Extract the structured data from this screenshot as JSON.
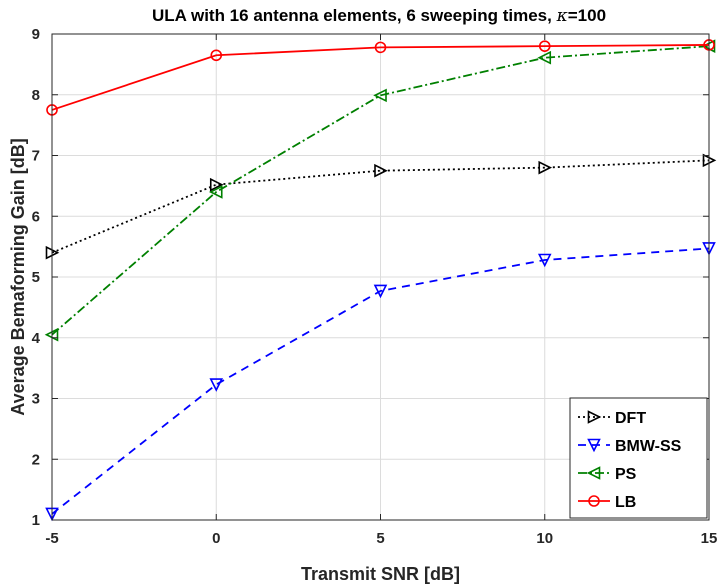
{
  "chart_data": {
    "type": "line",
    "title_text": "ULA with 16 antenna elements, 6 sweeping times, ",
    "title_symbol": "κ",
    "title_suffix": "=100",
    "xlabel": "Transmit SNR [dB]",
    "ylabel": "Average Bemaforming Gain [dB]",
    "xlim": [
      -5,
      15
    ],
    "ylim": [
      1,
      9
    ],
    "xticks": [
      -5,
      0,
      5,
      10,
      15
    ],
    "yticks": [
      1,
      2,
      3,
      4,
      5,
      6,
      7,
      8,
      9
    ],
    "grid": true,
    "legend_location": "bottom-right",
    "x": [
      -5,
      0,
      5,
      10,
      15
    ],
    "series": [
      {
        "name": "DFT",
        "values": [
          5.4,
          6.52,
          6.75,
          6.8,
          6.92
        ],
        "color": "#000000",
        "dash": "2,3",
        "marker": "triangle-right"
      },
      {
        "name": "BMW-SS",
        "values": [
          1.1,
          3.23,
          4.77,
          5.28,
          5.47
        ],
        "color": "#0000ff",
        "dash": "8,6",
        "marker": "triangle-down"
      },
      {
        "name": "PS",
        "values": [
          4.05,
          6.4,
          7.99,
          8.61,
          8.8
        ],
        "color": "#008000",
        "dash": "9,3,2,3",
        "marker": "triangle-left"
      },
      {
        "name": "LB",
        "values": [
          7.75,
          8.65,
          8.78,
          8.8,
          8.82
        ],
        "color": "#ff0000",
        "dash": "",
        "marker": "circle"
      }
    ]
  }
}
